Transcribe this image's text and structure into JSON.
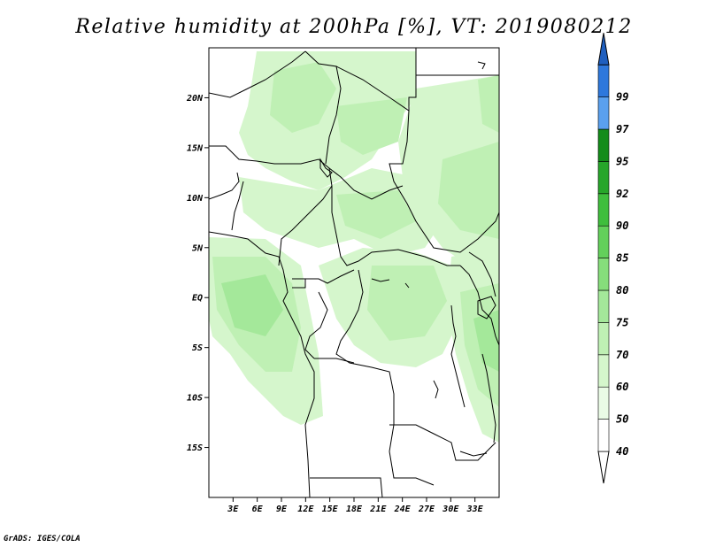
{
  "title": "Relative humidity at 200hPa [%], VT: 2019080212",
  "credit": "GrADS: IGES/COLA",
  "map": {
    "lon_range": [
      0,
      36
    ],
    "lat_range": [
      -20,
      25
    ],
    "x_ticks": [
      {
        "lon": 3,
        "label": "3E"
      },
      {
        "lon": 6,
        "label": "6E"
      },
      {
        "lon": 9,
        "label": "9E"
      },
      {
        "lon": 12,
        "label": "12E"
      },
      {
        "lon": 15,
        "label": "15E"
      },
      {
        "lon": 18,
        "label": "18E"
      },
      {
        "lon": 21,
        "label": "21E"
      },
      {
        "lon": 24,
        "label": "24E"
      },
      {
        "lon": 27,
        "label": "27E"
      },
      {
        "lon": 30,
        "label": "30E"
      },
      {
        "lon": 33,
        "label": "33E"
      }
    ],
    "y_ticks": [
      {
        "lat": 20,
        "label": "20N"
      },
      {
        "lat": 15,
        "label": "15N"
      },
      {
        "lat": 10,
        "label": "10N"
      },
      {
        "lat": 5,
        "label": "5N"
      },
      {
        "lat": 0,
        "label": "EQ"
      },
      {
        "lat": -5,
        "label": "5S"
      },
      {
        "lat": -10,
        "label": "10S"
      },
      {
        "lat": -15,
        "label": "15S"
      }
    ]
  },
  "colorbar": {
    "levels": [
      {
        "label": "40",
        "color": "#ffffff"
      },
      {
        "label": "50",
        "color": "#eafbe6"
      },
      {
        "label": "60",
        "color": "#d5f6cc"
      },
      {
        "label": "70",
        "color": "#bff0b4"
      },
      {
        "label": "75",
        "color": "#a4e89a"
      },
      {
        "label": "80",
        "color": "#86de7b"
      },
      {
        "label": "85",
        "color": "#63d05b"
      },
      {
        "label": "90",
        "color": "#3fbe3d"
      },
      {
        "label": "92",
        "color": "#27a62a"
      },
      {
        "label": "95",
        "color": "#148c1a"
      }
    ],
    "upper": [
      {
        "label": "97",
        "color": "#5aa0ee"
      },
      {
        "label": "99",
        "color": "#2e78dc"
      }
    ],
    "top_arrow_color": "#1f5fbf",
    "bottom_arrow_color": "#ffffff"
  }
}
